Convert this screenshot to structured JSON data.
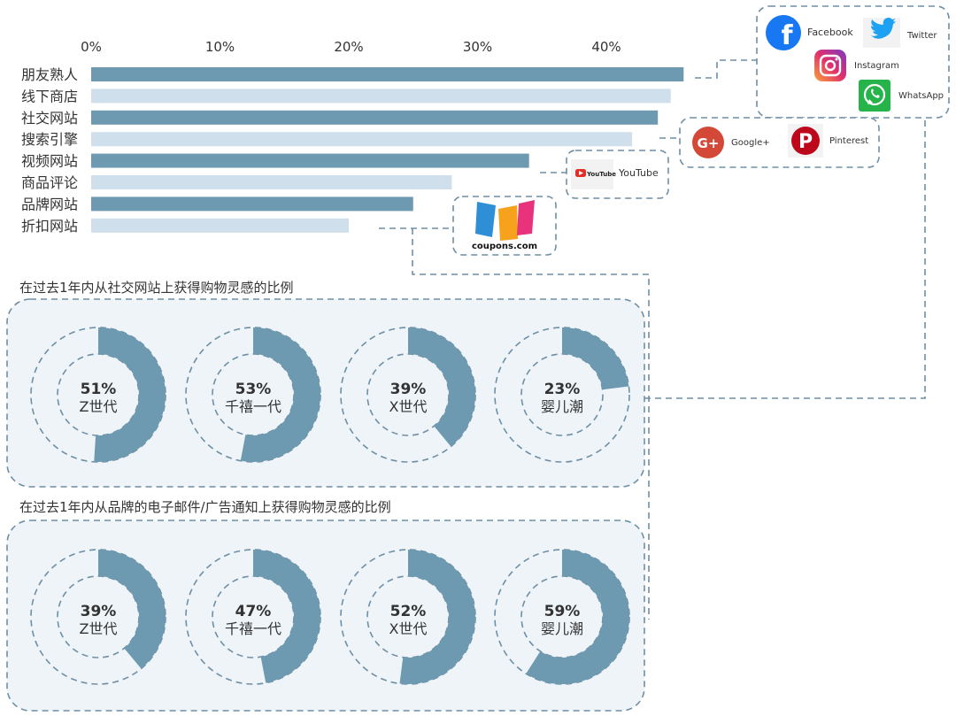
{
  "colors": {
    "dark_bar": "#6e9ab1",
    "light_bar": "#cfe0ec",
    "panel_fill": "#eef4f8",
    "dash": "#6e8fa6",
    "text": "#333333"
  },
  "chart_data": [
    {
      "type": "bar",
      "orientation": "horizontal",
      "categories": [
        "朋友熟人",
        "线下商店",
        "社交网站",
        "搜索引擎",
        "视频网站",
        "商品评论",
        "品牌网站",
        "折扣网站"
      ],
      "values": [
        46,
        45,
        44,
        42,
        34,
        28,
        25,
        20
      ],
      "tick_labels": [
        "0%",
        "10%",
        "20%",
        "30%",
        "40%"
      ],
      "xlim": [
        0,
        46
      ],
      "ticks": [
        0,
        10,
        20,
        30,
        40
      ],
      "grid": false
    },
    {
      "type": "pie",
      "variant": "donut",
      "title": "在过去1年内从社交网站上获得购物灵感的比例",
      "categories": [
        "Z世代",
        "千禧一代",
        "X世代",
        "婴儿潮"
      ],
      "values": [
        51,
        53,
        39,
        23
      ],
      "value_labels": [
        "51%",
        "53%",
        "39%",
        "23%"
      ]
    },
    {
      "type": "pie",
      "variant": "donut",
      "title": "在过去1年内从品牌的电子邮件/广告通知上获得购物灵感的比例",
      "categories": [
        "Z世代",
        "千禧一代",
        "X世代",
        "婴儿潮"
      ],
      "values": [
        39,
        47,
        52,
        59
      ],
      "value_labels": [
        "39%",
        "47%",
        "52%",
        "59%"
      ]
    }
  ],
  "logos": {
    "facebook": {
      "label": "Facebook",
      "icon": "facebook-icon",
      "color": "#1877f2"
    },
    "twitter": {
      "label": "Twitter",
      "icon": "twitter-icon",
      "color": "#1da1f2"
    },
    "instagram": {
      "label": "Instagram",
      "icon": "instagram-icon",
      "color": "#d6296b"
    },
    "whatsapp": {
      "label": "WhatsApp",
      "icon": "whatsapp-icon",
      "color": "#25b34a"
    },
    "googleplus": {
      "label": "Google+",
      "icon": "google-plus-icon",
      "color": "#d34836"
    },
    "pinterest": {
      "label": "Pinterest",
      "icon": "pinterest-icon",
      "color": "#bd081c"
    },
    "youtube": {
      "label": "YouTube",
      "icon": "youtube-icon",
      "color": "#e52d27"
    },
    "coupons": {
      "label": "coupons.com",
      "icon": "coupons-logo"
    }
  }
}
